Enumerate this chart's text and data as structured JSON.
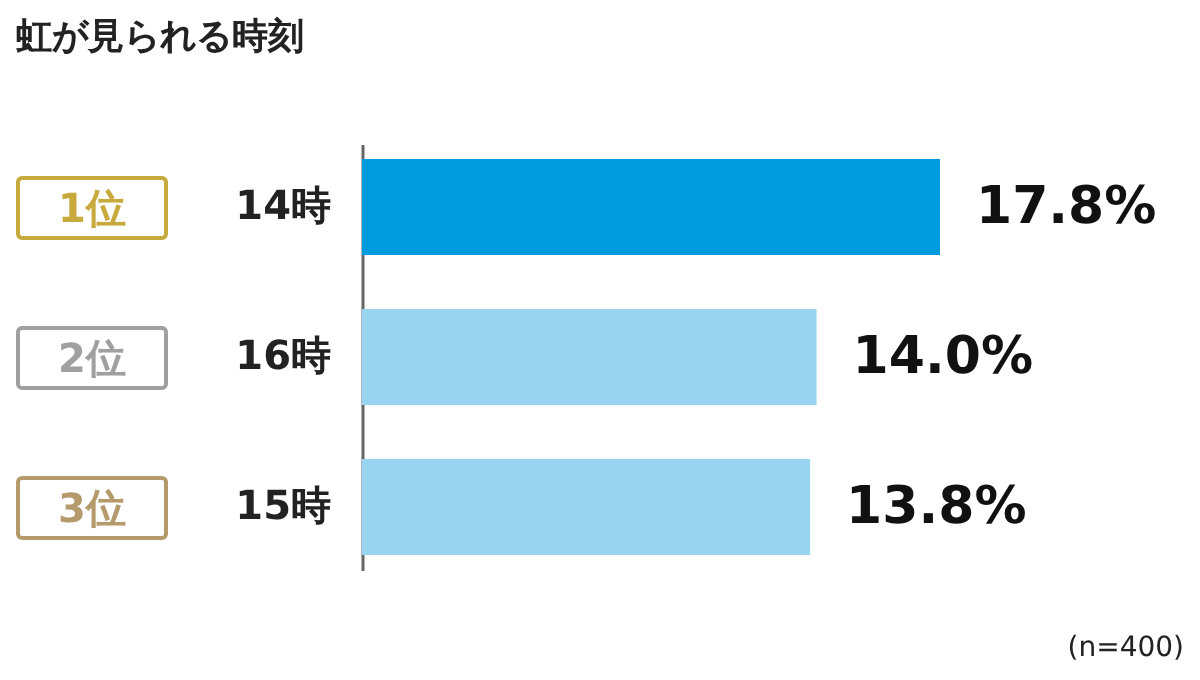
{
  "chart_data": {
    "type": "bar",
    "orientation": "horizontal",
    "title": "虹が見られる時刻",
    "categories": [
      "14時",
      "16時",
      "15時"
    ],
    "values": [
      17.8,
      14.0,
      13.8
    ],
    "colors": [
      "#009ade",
      "#99d5f0",
      "#99d5f0"
    ],
    "value_labels": [
      "17.8%",
      "14.0%",
      "13.8%"
    ],
    "annotations": [
      "1位",
      "2位",
      "3位",
      "(n=400)"
    ],
    "grid": false
  }
}
